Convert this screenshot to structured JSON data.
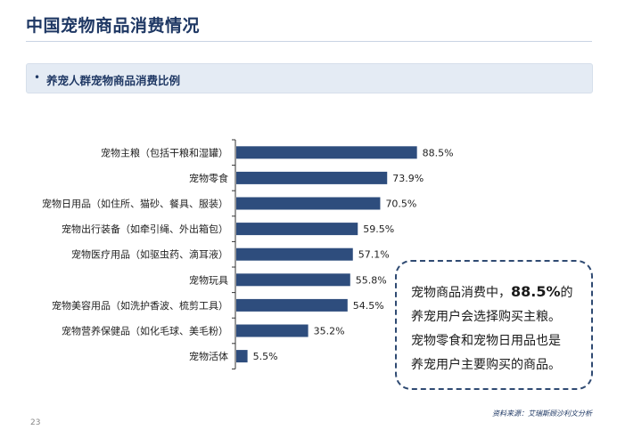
{
  "page": {
    "title": "中国宠物商品消费情况",
    "section_label": "养宠人群宠物商品消费比例",
    "bullet": "•",
    "page_number": "23",
    "source_note": "资料来源：艾瑞斯顾沙利文分析"
  },
  "callout": {
    "line1_prefix": "宠物商品消费中，",
    "line1_value": "88.5%",
    "line1_suffix": "的",
    "line2": "养宠用户会选择购买主粮。",
    "line3": "宠物零食和宠物日用品也是",
    "line4": "养宠用户主要购买的商品。"
  },
  "colors": {
    "bar": "#2e4d7d",
    "title": "#1f3864",
    "axis": "#333333"
  },
  "chart_data": {
    "type": "bar",
    "orientation": "horizontal",
    "categories": [
      "宠物主粮（包括干粮和湿罐）",
      "宠物零食",
      "宠物日用品（如住所、猫砂、餐具、服装）",
      "宠物出行装备（如牵引绳、外出箱包）",
      "宠物医疗用品（如驱虫药、滴耳液）",
      "宠物玩具",
      "宠物美容用品（如洗护香波、梳剪工具）",
      "宠物营养保健品（如化毛球、美毛粉）",
      "宠物活体"
    ],
    "values": [
      88.5,
      73.9,
      70.5,
      59.5,
      57.1,
      55.8,
      54.5,
      35.2,
      5.5
    ],
    "value_labels": [
      "88.5%",
      "73.9%",
      "70.5%",
      "59.5%",
      "57.1%",
      "55.8%",
      "54.5%",
      "35.2%",
      "5.5%"
    ],
    "xlim": [
      0,
      100
    ],
    "grid": false,
    "legend": "none"
  }
}
